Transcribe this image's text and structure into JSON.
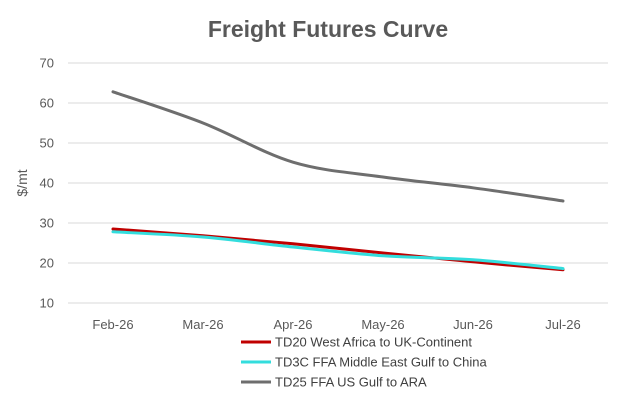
{
  "chart_data": {
    "type": "line",
    "title": "Freight Futures Curve",
    "xlabel": "",
    "ylabel": "$/mt",
    "ylim": [
      10,
      70
    ],
    "yticks": [
      10,
      20,
      30,
      40,
      50,
      60,
      70
    ],
    "grid": true,
    "smooth": true,
    "legend_position": "bottom",
    "categories": [
      "Feb-26",
      "Mar-26",
      "Apr-26",
      "May-26",
      "Jun-26",
      "Jul-26"
    ],
    "series": [
      {
        "name": "TD20 West Africa to UK-Continent",
        "color": "#c00000",
        "values": [
          28.5,
          26.8,
          24.8,
          22.5,
          20.3,
          18.3
        ]
      },
      {
        "name": "TD3C FFA Middle East Gulf to China",
        "color": "#33dddd",
        "values": [
          27.8,
          26.5,
          24.0,
          21.8,
          20.8,
          18.6
        ]
      },
      {
        "name": "TD25 FFA US Gulf to ARA",
        "color": "#6e6e6e",
        "values": [
          62.8,
          55.0,
          45.2,
          41.5,
          38.8,
          35.5
        ]
      }
    ]
  }
}
